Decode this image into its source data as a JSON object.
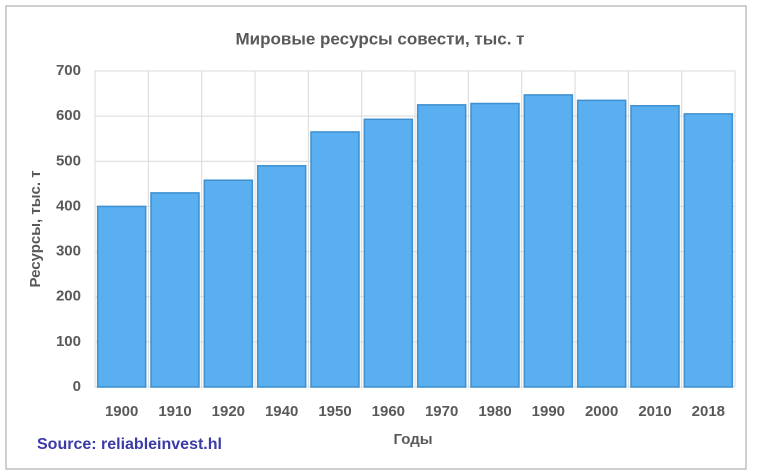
{
  "chart_data": {
    "type": "bar",
    "title": "Мировые ресурсы совести, тыс. т",
    "y_label": "Ресурсы, тыс. т",
    "x_label": "Годы",
    "source": "Source: reliableinvest.hl",
    "categories": [
      "1900",
      "1910",
      "1920",
      "1940",
      "1950",
      "1960",
      "1970",
      "1980",
      "1990",
      "2000",
      "2010",
      "2018"
    ],
    "values": [
      400,
      430,
      458,
      490,
      565,
      593,
      625,
      628,
      647,
      635,
      623,
      605
    ],
    "color": "#5aaff0",
    "ylim": [
      0,
      700
    ],
    "yticks": [
      0,
      100,
      200,
      300,
      400,
      500,
      600,
      700
    ],
    "grid": true
  }
}
